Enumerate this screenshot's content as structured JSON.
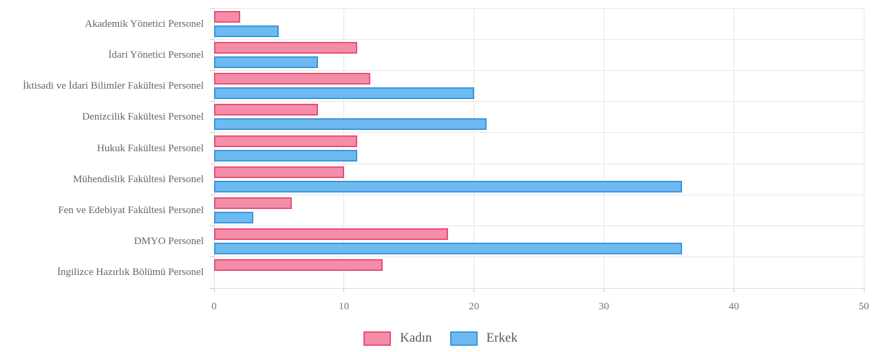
{
  "chart_data": {
    "type": "bar",
    "orientation": "horizontal",
    "title": "",
    "categories": [
      "Akademik Yönetici Personel",
      "İdari Yönetici Personel",
      "İktisadi ve İdari Bilimler Fakültesi Personel",
      "Denizcilik Fakültesi Personel",
      "Hukuk Fakültesi Personel",
      "Mühendislik Fakültesi Personel",
      "Fen ve Edebiyat Fakültesi Personel",
      "DMYO Personel",
      "İngilizce Hazırlık Bölümü Personel"
    ],
    "series": [
      {
        "name": "Kadın",
        "values": [
          2,
          11,
          12,
          8,
          11,
          10,
          6,
          18,
          13
        ],
        "fill": "#F48DA8",
        "border": "#EA4E76"
      },
      {
        "name": "Erkek",
        "values": [
          5,
          8,
          20,
          21,
          11,
          36,
          3,
          36,
          0
        ],
        "fill": "#6CBAF0",
        "border": "#3E94DD"
      }
    ],
    "xlim": [
      0,
      50
    ],
    "x_ticks": [
      0,
      10,
      20,
      30,
      40,
      50
    ],
    "grid": true,
    "legend_position": "bottom"
  },
  "colors": {
    "grid": "#e6e6e6",
    "axis": "#dcdcdc",
    "tick": "#c9c9c9",
    "label_text": "#666666",
    "axis_text": "#737373",
    "legend_text": "#595959",
    "background": "#ffffff"
  }
}
